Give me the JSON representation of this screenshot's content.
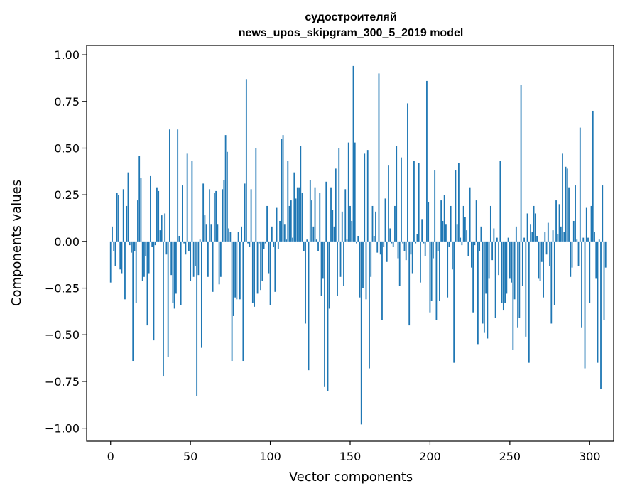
{
  "chart_data": {
    "type": "bar",
    "title": [
      "судостроителяй",
      "news_upos_skipgram_300_5_2019 model"
    ],
    "xlabel": "Vector components",
    "ylabel": "Components values",
    "xlim": [
      -15,
      315
    ],
    "ylim": [
      -1.07,
      1.05
    ],
    "xticks": [
      0,
      50,
      100,
      150,
      200,
      250,
      300
    ],
    "xtick_labels": [
      "0",
      "50",
      "100",
      "150",
      "200",
      "250",
      "300"
    ],
    "yticks": [
      1.0,
      0.75,
      0.5,
      0.25,
      0.0,
      -0.25,
      -0.5,
      -0.75,
      -1.0
    ],
    "ytick_labels": [
      "1.00",
      "0.75",
      "0.50",
      "0.25",
      "0.00",
      "−0.25",
      "−0.50",
      "−0.75",
      "−1.00"
    ],
    "bar_color": "#1f77b4",
    "grid": false,
    "values": [
      -0.22,
      0.08,
      -0.05,
      -0.13,
      0.26,
      0.25,
      -0.15,
      -0.17,
      0.28,
      -0.31,
      0.19,
      0.37,
      -0.02,
      -0.06,
      -0.64,
      -0.05,
      -0.33,
      0.22,
      0.46,
      0.34,
      -0.21,
      -0.19,
      -0.08,
      -0.45,
      -0.17,
      0.35,
      -0.03,
      -0.53,
      -0.02,
      0.29,
      0.27,
      0.06,
      0.14,
      -0.72,
      0.15,
      -0.07,
      -0.62,
      0.6,
      -0.18,
      -0.33,
      -0.36,
      -0.28,
      0.6,
      0.03,
      -0.34,
      0.3,
      -0.01,
      -0.07,
      0.47,
      -0.05,
      -0.21,
      0.43,
      -0.19,
      -0.13,
      -0.83,
      -0.18,
      0.01,
      -0.57,
      0.31,
      0.14,
      0.09,
      -0.19,
      0.28,
      0.09,
      -0.27,
      0.26,
      0.27,
      0.09,
      -0.23,
      -0.19,
      0.28,
      0.33,
      0.57,
      0.48,
      0.07,
      0.05,
      -0.64,
      -0.4,
      -0.3,
      -0.31,
      0.05,
      -0.31,
      0.08,
      -0.64,
      0.31,
      0.87,
      -0.01,
      -0.03,
      0.28,
      -0.33,
      -0.35,
      0.5,
      -0.28,
      -0.01,
      -0.26,
      -0.21,
      -0.04,
      -0.01,
      0.19,
      -0.17,
      -0.34,
      0.08,
      -0.03,
      -0.27,
      0.18,
      -0.04,
      0.11,
      0.55,
      0.57,
      0.09,
      0.01,
      0.43,
      0.19,
      0.22,
      0.02,
      0.37,
      0.23,
      0.29,
      0.29,
      0.51,
      0.26,
      -0.05,
      -0.44,
      0.01,
      -0.69,
      0.33,
      0.22,
      0.08,
      0.29,
      0.01,
      -0.05,
      0.26,
      -0.29,
      -0.2,
      -0.78,
      0.32,
      -0.8,
      -0.36,
      0.29,
      0.17,
      0.08,
      0.39,
      -0.29,
      0.5,
      -0.19,
      0.16,
      -0.24,
      0.28,
      0.01,
      0.53,
      0.19,
      0.11,
      0.94,
      0.53,
      -0.01,
      0.03,
      -0.3,
      -0.98,
      -0.25,
      0.47,
      -0.31,
      0.49,
      -0.68,
      -0.19,
      0.19,
      0.03,
      0.16,
      -0.06,
      0.9,
      -0.07,
      -0.42,
      -0.03,
      0.23,
      -0.11,
      0.41,
      0.07,
      -0.01,
      -0.03,
      0.19,
      0.51,
      -0.09,
      -0.24,
      0.45,
      -0.01,
      -0.05,
      -0.1,
      0.74,
      -0.45,
      -0.07,
      -0.17,
      0.43,
      -0.01,
      0.04,
      0.42,
      -0.22,
      0.12,
      -0.01,
      -0.08,
      0.86,
      0.21,
      -0.38,
      -0.32,
      -0.09,
      0.38,
      -0.42,
      -0.05,
      -0.32,
      0.22,
      0.11,
      0.25,
      0.09,
      -0.3,
      -0.03,
      0.19,
      -0.15,
      -0.65,
      0.38,
      0.09,
      0.42,
      0.02,
      -0.02,
      0.19,
      0.13,
      0.06,
      -0.08,
      0.29,
      -0.14,
      -0.38,
      -0.02,
      0.22,
      -0.55,
      -0.05,
      0.08,
      -0.44,
      -0.49,
      -0.28,
      -0.52,
      -0.2,
      0.19,
      -0.1,
      0.07,
      -0.41,
      0.02,
      -0.18,
      0.43,
      -0.33,
      -0.37,
      -0.33,
      -0.28,
      0.02,
      -0.2,
      -0.22,
      -0.58,
      -0.31,
      0.08,
      -0.46,
      -0.41,
      0.84,
      -0.24,
      0.02,
      -0.51,
      0.15,
      -0.65,
      0.09,
      0.05,
      0.19,
      0.15,
      0.03,
      -0.2,
      -0.21,
      -0.11,
      -0.3,
      0.05,
      -0.07,
      0.1,
      -0.13,
      -0.44,
      0.06,
      -0.34,
      0.22,
      0.04,
      0.2,
      0.08,
      0.47,
      0.05,
      0.4,
      0.39,
      0.29,
      -0.19,
      -0.14,
      0.11,
      0.3,
      0.01,
      -0.13,
      0.61,
      -0.46,
      0.02,
      -0.68,
      0.18,
      0.02,
      -0.33,
      0.19,
      0.7,
      0.05,
      -0.2,
      -0.65,
      0.01,
      -0.79,
      0.3,
      -0.42,
      -0.14
    ]
  }
}
